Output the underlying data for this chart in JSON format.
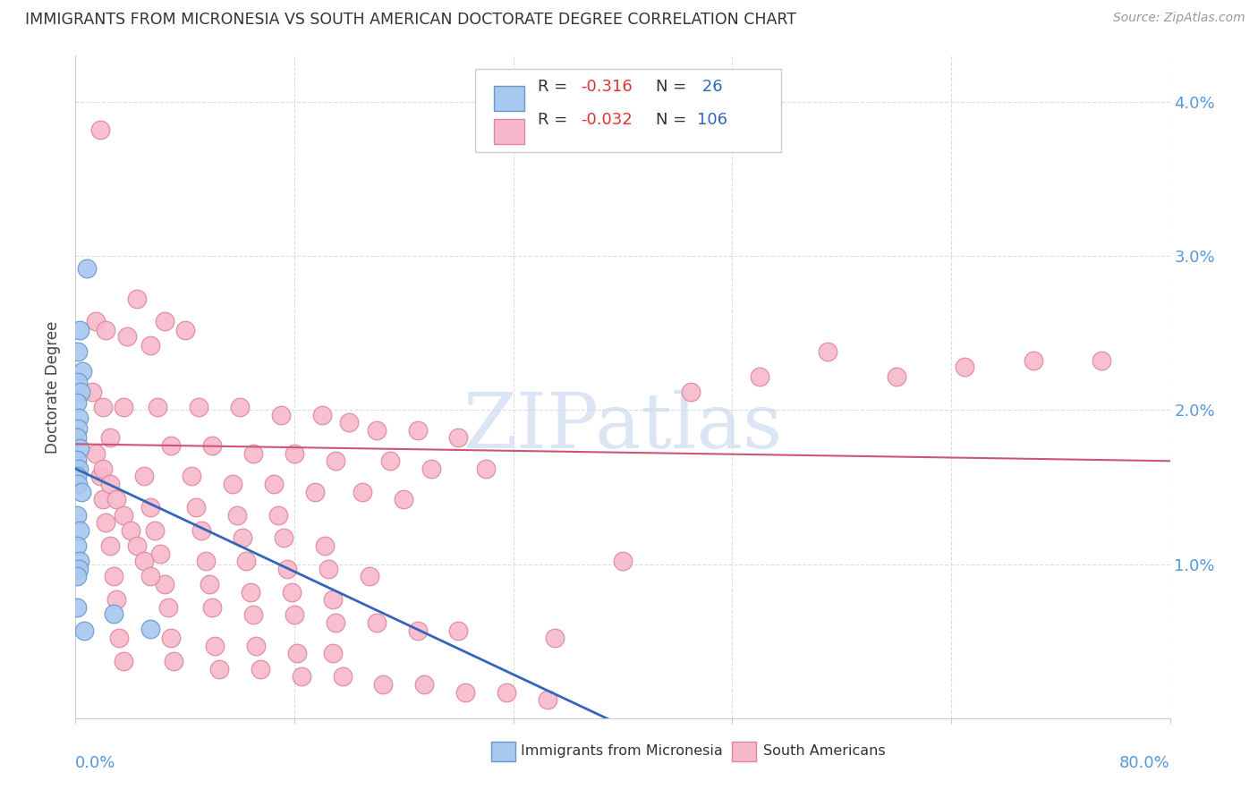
{
  "title": "IMMIGRANTS FROM MICRONESIA VS SOUTH AMERICAN DOCTORATE DEGREE CORRELATION CHART",
  "source": "Source: ZipAtlas.com",
  "ylabel": "Doctorate Degree",
  "watermark": "ZIPatlas",
  "xlim": [
    0,
    80
  ],
  "ylim": [
    0,
    4.3
  ],
  "background_color": "#FFFFFF",
  "grid_color": "#DDDDDD",
  "axis_color": "#5599DD",
  "micronesia_color": "#A8C8F0",
  "south_american_color": "#F8B8CC",
  "micronesia_edge": "#6699CC",
  "south_american_edge": "#DD8899",
  "trend_micronesia_color": "#3366BB",
  "trend_south_american_color": "#CC5577",
  "micronesia_points": [
    [
      0.8,
      2.92
    ],
    [
      0.3,
      2.52
    ],
    [
      0.15,
      2.38
    ],
    [
      0.5,
      2.25
    ],
    [
      0.2,
      2.18
    ],
    [
      0.35,
      2.12
    ],
    [
      0.12,
      2.05
    ],
    [
      0.22,
      1.95
    ],
    [
      0.18,
      1.88
    ],
    [
      0.08,
      1.82
    ],
    [
      0.28,
      1.75
    ],
    [
      0.12,
      1.68
    ],
    [
      0.22,
      1.62
    ],
    [
      0.08,
      1.57
    ],
    [
      0.18,
      1.52
    ],
    [
      0.42,
      1.47
    ],
    [
      0.12,
      1.32
    ],
    [
      0.28,
      1.22
    ],
    [
      0.08,
      1.12
    ],
    [
      0.28,
      1.02
    ],
    [
      0.22,
      0.97
    ],
    [
      0.08,
      0.92
    ],
    [
      0.12,
      0.72
    ],
    [
      0.62,
      0.57
    ],
    [
      5.5,
      0.58
    ],
    [
      2.8,
      0.68
    ]
  ],
  "south_american_points": [
    [
      1.8,
      3.82
    ],
    [
      4.5,
      2.72
    ],
    [
      1.5,
      2.58
    ],
    [
      6.5,
      2.58
    ],
    [
      2.2,
      2.52
    ],
    [
      8.0,
      2.52
    ],
    [
      3.8,
      2.48
    ],
    [
      5.5,
      2.42
    ],
    [
      55.0,
      2.38
    ],
    [
      75.0,
      2.32
    ],
    [
      70.0,
      2.32
    ],
    [
      65.0,
      2.28
    ],
    [
      60.0,
      2.22
    ],
    [
      50.0,
      2.22
    ],
    [
      45.0,
      2.12
    ],
    [
      1.2,
      2.12
    ],
    [
      2.0,
      2.02
    ],
    [
      3.5,
      2.02
    ],
    [
      6.0,
      2.02
    ],
    [
      9.0,
      2.02
    ],
    [
      12.0,
      2.02
    ],
    [
      15.0,
      1.97
    ],
    [
      18.0,
      1.97
    ],
    [
      20.0,
      1.92
    ],
    [
      22.0,
      1.87
    ],
    [
      25.0,
      1.87
    ],
    [
      28.0,
      1.82
    ],
    [
      2.5,
      1.82
    ],
    [
      7.0,
      1.77
    ],
    [
      10.0,
      1.77
    ],
    [
      13.0,
      1.72
    ],
    [
      16.0,
      1.72
    ],
    [
      19.0,
      1.67
    ],
    [
      23.0,
      1.67
    ],
    [
      26.0,
      1.62
    ],
    [
      30.0,
      1.62
    ],
    [
      1.8,
      1.57
    ],
    [
      5.0,
      1.57
    ],
    [
      8.5,
      1.57
    ],
    [
      11.5,
      1.52
    ],
    [
      14.5,
      1.52
    ],
    [
      17.5,
      1.47
    ],
    [
      21.0,
      1.47
    ],
    [
      24.0,
      1.42
    ],
    [
      2.0,
      1.42
    ],
    [
      5.5,
      1.37
    ],
    [
      8.8,
      1.37
    ],
    [
      11.8,
      1.32
    ],
    [
      14.8,
      1.32
    ],
    [
      2.2,
      1.27
    ],
    [
      5.8,
      1.22
    ],
    [
      9.2,
      1.22
    ],
    [
      12.2,
      1.17
    ],
    [
      15.2,
      1.17
    ],
    [
      18.2,
      1.12
    ],
    [
      2.5,
      1.12
    ],
    [
      6.2,
      1.07
    ],
    [
      9.5,
      1.02
    ],
    [
      12.5,
      1.02
    ],
    [
      15.5,
      0.97
    ],
    [
      18.5,
      0.97
    ],
    [
      21.5,
      0.92
    ],
    [
      2.8,
      0.92
    ],
    [
      6.5,
      0.87
    ],
    [
      9.8,
      0.87
    ],
    [
      12.8,
      0.82
    ],
    [
      15.8,
      0.82
    ],
    [
      18.8,
      0.77
    ],
    [
      3.0,
      0.77
    ],
    [
      6.8,
      0.72
    ],
    [
      10.0,
      0.72
    ],
    [
      13.0,
      0.67
    ],
    [
      16.0,
      0.67
    ],
    [
      19.0,
      0.62
    ],
    [
      22.0,
      0.62
    ],
    [
      25.0,
      0.57
    ],
    [
      28.0,
      0.57
    ],
    [
      3.2,
      0.52
    ],
    [
      7.0,
      0.52
    ],
    [
      10.2,
      0.47
    ],
    [
      13.2,
      0.47
    ],
    [
      16.2,
      0.42
    ],
    [
      18.8,
      0.42
    ],
    [
      3.5,
      0.37
    ],
    [
      7.2,
      0.37
    ],
    [
      10.5,
      0.32
    ],
    [
      13.5,
      0.32
    ],
    [
      16.5,
      0.27
    ],
    [
      19.5,
      0.27
    ],
    [
      22.5,
      0.22
    ],
    [
      25.5,
      0.22
    ],
    [
      28.5,
      0.17
    ],
    [
      31.5,
      0.17
    ],
    [
      34.5,
      0.12
    ],
    [
      40.0,
      1.02
    ],
    [
      35.0,
      0.52
    ],
    [
      1.5,
      1.72
    ],
    [
      2.0,
      1.62
    ],
    [
      2.5,
      1.52
    ],
    [
      3.0,
      1.42
    ],
    [
      3.5,
      1.32
    ],
    [
      4.0,
      1.22
    ],
    [
      4.5,
      1.12
    ],
    [
      5.0,
      1.02
    ],
    [
      5.5,
      0.92
    ]
  ]
}
